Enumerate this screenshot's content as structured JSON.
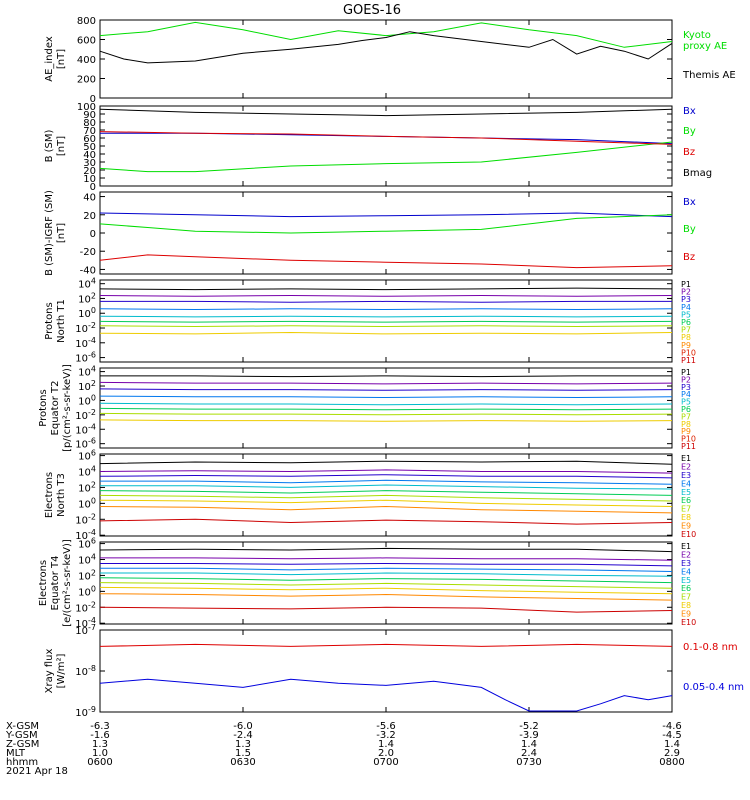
{
  "title": "GOES-16",
  "date_label": "2021 Apr 18",
  "chart_data": [
    {
      "type": "line",
      "id": "ae",
      "ylabel": "AE_index\n[nT]",
      "yscale": "linear",
      "ylim": [
        0,
        800
      ],
      "yticks": [
        "0",
        "200",
        "400",
        "600",
        "800"
      ],
      "series": [
        {
          "name": "Kyoto\nproxy AE",
          "color": "#00dd00",
          "x": [
            0,
            10,
            20,
            30,
            40,
            50,
            60,
            70,
            80,
            90,
            100,
            110,
            120
          ],
          "y": [
            640,
            680,
            775,
            700,
            600,
            690,
            640,
            680,
            770,
            700,
            640,
            520,
            580
          ]
        },
        {
          "name": "Themis AE",
          "color": "#000000",
          "x": [
            0,
            5,
            10,
            20,
            30,
            40,
            50,
            55,
            60,
            65,
            70,
            80,
            90,
            95,
            100,
            105,
            110,
            115,
            120
          ],
          "y": [
            480,
            400,
            360,
            380,
            460,
            500,
            550,
            590,
            620,
            680,
            640,
            580,
            520,
            600,
            450,
            530,
            480,
            400,
            560
          ]
        }
      ]
    },
    {
      "type": "line",
      "id": "bsm",
      "ylabel": "B (SM)\n[nT]",
      "yscale": "linear",
      "ylim": [
        0,
        100
      ],
      "yticks": [
        "0",
        "10",
        "20",
        "30",
        "40",
        "50",
        "60",
        "70",
        "80",
        "90",
        "100"
      ],
      "series": [
        {
          "name": "Bx",
          "color": "#0000cc",
          "x": [
            0,
            20,
            40,
            60,
            80,
            100,
            120
          ],
          "y": [
            66,
            66,
            64,
            62,
            60,
            58,
            53
          ]
        },
        {
          "name": "By",
          "color": "#00dd00",
          "x": [
            0,
            10,
            20,
            40,
            60,
            80,
            100,
            120
          ],
          "y": [
            22,
            18,
            18,
            25,
            28,
            30,
            42,
            55
          ]
        },
        {
          "name": "Bz",
          "color": "#dd0000",
          "x": [
            0,
            20,
            40,
            60,
            80,
            100,
            120
          ],
          "y": [
            68,
            66,
            65,
            62,
            60,
            56,
            52
          ]
        },
        {
          "name": "Bmag",
          "color": "#000000",
          "x": [
            0,
            20,
            40,
            60,
            80,
            100,
            120
          ],
          "y": [
            96,
            92,
            90,
            88,
            90,
            92,
            96
          ]
        }
      ]
    },
    {
      "type": "line",
      "id": "bdiff",
      "ylabel": "B (SM)-IGRF (SM)\n[nT]",
      "yscale": "linear",
      "ylim": [
        -45,
        45
      ],
      "yticks": [
        "-40",
        "-20",
        "0",
        "20",
        "40"
      ],
      "series": [
        {
          "name": "Bx",
          "color": "#0000cc",
          "x": [
            0,
            20,
            40,
            60,
            80,
            100,
            120
          ],
          "y": [
            22,
            20,
            18,
            19,
            20,
            22,
            18
          ]
        },
        {
          "name": "By",
          "color": "#00dd00",
          "x": [
            0,
            10,
            20,
            40,
            60,
            80,
            100,
            120
          ],
          "y": [
            10,
            6,
            2,
            0,
            2,
            4,
            16,
            20
          ]
        },
        {
          "name": "Bz",
          "color": "#dd0000",
          "x": [
            0,
            10,
            20,
            40,
            60,
            80,
            100,
            120
          ],
          "y": [
            -30,
            -24,
            -26,
            -30,
            -32,
            -34,
            -38,
            -36
          ]
        }
      ]
    },
    {
      "type": "line",
      "id": "protons_t1",
      "ylabel": "Protons\nNorth T1",
      "yscale": "log",
      "ylim": [
        -6.6,
        4.5
      ],
      "yticks": [
        "10^4",
        "10^2",
        "10^0",
        "10^-2",
        "10^-4",
        "10^-6"
      ],
      "series": [
        {
          "name": "P1",
          "color": "#000000",
          "y_log10": [
            3.3,
            3.2,
            3.3,
            3.2,
            3.3,
            3.4,
            3.3
          ]
        },
        {
          "name": "P2",
          "color": "#7700aa",
          "y_log10": [
            2.4,
            2.3,
            2.4,
            2.3,
            2.4,
            2.3,
            2.4
          ]
        },
        {
          "name": "P3",
          "color": "#2200cc",
          "y_log10": [
            1.6,
            1.6,
            1.5,
            1.6,
            1.5,
            1.6,
            1.6
          ]
        },
        {
          "name": "P4",
          "color": "#0077ee",
          "y_log10": [
            0.6,
            0.5,
            0.6,
            0.5,
            0.6,
            0.5,
            0.6
          ]
        },
        {
          "name": "P5",
          "color": "#00bbcc",
          "y_log10": [
            -0.4,
            -0.5,
            -0.4,
            -0.5,
            -0.4,
            -0.5,
            -0.4
          ]
        },
        {
          "name": "P6",
          "color": "#00cc55",
          "y_log10": [
            -1.1,
            -1.2,
            -1.1,
            -1.2,
            -1.1,
            -1.2,
            -1.1
          ]
        },
        {
          "name": "P7",
          "color": "#aadd00",
          "y_log10": [
            -1.7,
            -1.8,
            -1.7,
            -1.8,
            -1.7,
            -1.8,
            -1.7
          ]
        },
        {
          "name": "P8",
          "color": "#eecc00",
          "y_log10": [
            -2.7,
            -2.8,
            -2.6,
            -2.8,
            -2.7,
            -2.8,
            -2.6
          ]
        },
        {
          "name": "P9",
          "color": "#ff8800",
          "y_log10": []
        },
        {
          "name": "P10",
          "color": "#dd2200",
          "y_log10": []
        },
        {
          "name": "P11",
          "color": "#cc0000",
          "y_log10": []
        }
      ]
    },
    {
      "type": "line",
      "id": "protons_t2",
      "ylabel": "Protons\nEquator T2\n[p/(cm²-s-sr-keV)]",
      "yscale": "log",
      "ylim": [
        -6.6,
        4.5
      ],
      "yticks": [
        "10^4",
        "10^2",
        "10^0",
        "10^-2",
        "10^-4",
        "10^-6"
      ],
      "series": [
        {
          "name": "P1",
          "color": "#000000",
          "y_log10": [
            3.4,
            3.4,
            3.3,
            3.4,
            3.3,
            3.4,
            3.4
          ]
        },
        {
          "name": "P2",
          "color": "#7700aa",
          "y_log10": [
            2.5,
            2.4,
            2.4,
            2.3,
            2.4,
            2.3,
            2.4
          ]
        },
        {
          "name": "P3",
          "color": "#2200cc",
          "y_log10": [
            1.6,
            1.5,
            1.5,
            1.4,
            1.5,
            1.4,
            1.5
          ]
        },
        {
          "name": "P4",
          "color": "#0077ee",
          "y_log10": [
            0.6,
            0.5,
            0.5,
            0.4,
            0.5,
            0.4,
            0.5
          ]
        },
        {
          "name": "P5",
          "color": "#00bbcc",
          "y_log10": [
            -0.4,
            -0.5,
            -0.5,
            -0.6,
            -0.5,
            -0.6,
            -0.5
          ]
        },
        {
          "name": "P6",
          "color": "#00cc55",
          "y_log10": [
            -1.1,
            -1.2,
            -1.2,
            -1.3,
            -1.2,
            -1.3,
            -1.2
          ]
        },
        {
          "name": "P7",
          "color": "#aadd00",
          "y_log10": [
            -1.8,
            -1.9,
            -1.9,
            -2.0,
            -1.9,
            -2.0,
            -1.9
          ]
        },
        {
          "name": "P8",
          "color": "#eecc00",
          "y_log10": [
            -2.7,
            -2.8,
            -2.8,
            -2.9,
            -2.8,
            -2.9,
            -2.8
          ]
        },
        {
          "name": "P9",
          "color": "#ff8800",
          "y_log10": []
        },
        {
          "name": "P10",
          "color": "#dd2200",
          "y_log10": []
        },
        {
          "name": "P11",
          "color": "#cc0000",
          "y_log10": []
        }
      ]
    },
    {
      "type": "line",
      "id": "electrons_t3",
      "ylabel": "Electrons\nNorth T3",
      "yscale": "log",
      "ylim": [
        -4.1,
        6.2
      ],
      "yticks": [
        "10^6",
        "10^4",
        "10^2",
        "10^0",
        "10^-2",
        "10^-4"
      ],
      "series": [
        {
          "name": "E1",
          "color": "#000000",
          "y_log10": [
            5.0,
            5.2,
            5.1,
            5.3,
            5.2,
            5.3,
            4.9
          ]
        },
        {
          "name": "E2",
          "color": "#7700aa",
          "y_log10": [
            4.0,
            4.1,
            4.0,
            4.2,
            4.0,
            4.0,
            3.8
          ]
        },
        {
          "name": "E3",
          "color": "#2200cc",
          "y_log10": [
            3.4,
            3.5,
            3.4,
            3.6,
            3.4,
            3.4,
            3.2
          ]
        },
        {
          "name": "E4",
          "color": "#0077ee",
          "y_log10": [
            2.8,
            2.8,
            2.6,
            2.9,
            2.7,
            2.6,
            2.4
          ]
        },
        {
          "name": "E5",
          "color": "#00bbcc",
          "y_log10": [
            2.2,
            2.2,
            2.0,
            2.3,
            2.1,
            1.9,
            1.8
          ]
        },
        {
          "name": "E6",
          "color": "#00cc55",
          "y_log10": [
            1.6,
            1.5,
            1.3,
            1.6,
            1.4,
            1.2,
            1.0
          ]
        },
        {
          "name": "E7",
          "color": "#aadd00",
          "y_log10": [
            1.0,
            0.9,
            0.7,
            1.0,
            0.7,
            0.5,
            0.3
          ]
        },
        {
          "name": "E8",
          "color": "#eecc00",
          "y_log10": [
            0.4,
            0.3,
            0.1,
            0.4,
            0.0,
            -0.2,
            -0.4
          ]
        },
        {
          "name": "E9",
          "color": "#ff8800",
          "y_log10": [
            -0.4,
            -0.5,
            -0.8,
            -0.4,
            -0.8,
            -1.0,
            -1.2
          ]
        },
        {
          "name": "E10",
          "color": "#cc0000",
          "y_log10": [
            -2.2,
            -2.0,
            -2.4,
            -2.1,
            -2.3,
            -2.6,
            -2.4
          ]
        }
      ]
    },
    {
      "type": "line",
      "id": "electrons_t4",
      "ylabel": "Electrons\nEquator T4\n[e/(cm²-s-sr-keV)]",
      "yscale": "log",
      "ylim": [
        -4.1,
        6.2
      ],
      "yticks": [
        "10^6",
        "10^4",
        "10^2",
        "10^0",
        "10^-2",
        "10^-4"
      ],
      "series": [
        {
          "name": "E1",
          "color": "#000000",
          "y_log10": [
            5.2,
            5.3,
            5.2,
            5.4,
            5.3,
            5.3,
            5.0
          ]
        },
        {
          "name": "E2",
          "color": "#7700aa",
          "y_log10": [
            4.2,
            4.2,
            4.1,
            4.2,
            4.1,
            4.1,
            3.9
          ]
        },
        {
          "name": "E3",
          "color": "#2200cc",
          "y_log10": [
            3.5,
            3.5,
            3.4,
            3.5,
            3.4,
            3.4,
            3.2
          ]
        },
        {
          "name": "E4",
          "color": "#0077ee",
          "y_log10": [
            2.9,
            2.9,
            2.7,
            2.9,
            2.8,
            2.7,
            2.5
          ]
        },
        {
          "name": "E5",
          "color": "#00bbcc",
          "y_log10": [
            2.3,
            2.3,
            2.1,
            2.3,
            2.2,
            2.0,
            1.9
          ]
        },
        {
          "name": "E6",
          "color": "#00cc55",
          "y_log10": [
            1.7,
            1.6,
            1.4,
            1.6,
            1.5,
            1.3,
            1.1
          ]
        },
        {
          "name": "E7",
          "color": "#aadd00",
          "y_log10": [
            1.1,
            1.0,
            0.8,
            1.0,
            0.8,
            0.6,
            0.4
          ]
        },
        {
          "name": "E8",
          "color": "#eecc00",
          "y_log10": [
            0.5,
            0.4,
            0.2,
            0.4,
            0.1,
            -0.1,
            -0.3
          ]
        },
        {
          "name": "E9",
          "color": "#ff8800",
          "y_log10": [
            -0.3,
            -0.4,
            -0.6,
            -0.4,
            -0.7,
            -0.9,
            -1.1
          ]
        },
        {
          "name": "E10",
          "color": "#cc0000",
          "y_log10": [
            -2.0,
            -2.1,
            -2.2,
            -2.0,
            -2.1,
            -2.6,
            -2.4
          ]
        }
      ]
    },
    {
      "type": "line",
      "id": "xray",
      "ylabel": "Xray flux\n[W/m²]",
      "yscale": "log",
      "ylim": [
        -9,
        -7
      ],
      "yticks": [
        "10^-7",
        "10^-8",
        "10^-9"
      ],
      "series": [
        {
          "name": "0.1-0.8 nm",
          "color": "#dd0000",
          "x": [
            0,
            20,
            40,
            60,
            80,
            100,
            120
          ],
          "y_log10": [
            -7.4,
            -7.35,
            -7.4,
            -7.35,
            -7.4,
            -7.35,
            -7.4
          ]
        },
        {
          "name": "0.05-0.4 nm",
          "color": "#0000dd",
          "x": [
            0,
            10,
            20,
            30,
            40,
            50,
            60,
            70,
            80,
            85,
            90,
            95,
            100,
            105,
            110,
            115,
            120
          ],
          "y_log10": [
            -8.3,
            -8.2,
            -8.3,
            -8.4,
            -8.2,
            -8.3,
            -8.35,
            -8.25,
            -8.4,
            -8.7,
            -9.2,
            -9.2,
            -9.2,
            -8.8,
            -8.6,
            -8.7,
            -8.6
          ]
        }
      ]
    }
  ],
  "x_axis": {
    "row_labels": [
      "X-GSM",
      "Y-GSM",
      "Z-GSM",
      "MLT",
      "hhmm"
    ],
    "ticks": [
      {
        "values": [
          "-6.3",
          "-1.6",
          "1.3",
          "1.0",
          "0600"
        ]
      },
      {
        "values": [
          "-6.0",
          "-2.4",
          "1.3",
          "1.5",
          "0630"
        ]
      },
      {
        "values": [
          "-5.6",
          "-3.2",
          "1.4",
          "2.0",
          "0700"
        ]
      },
      {
        "values": [
          "-5.2",
          "-3.9",
          "1.4",
          "2.4",
          "0730"
        ]
      },
      {
        "values": [
          "-4.6",
          "-4.5",
          "1.4",
          "2.9",
          "0800"
        ]
      }
    ]
  }
}
